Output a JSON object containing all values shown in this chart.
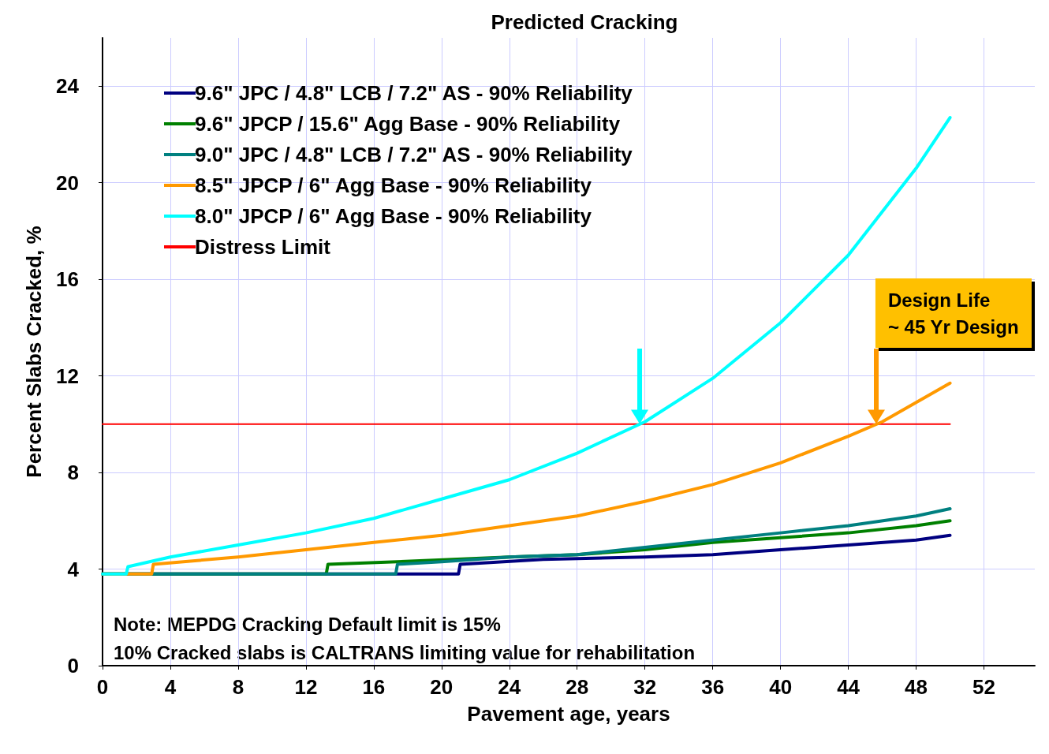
{
  "chart_data": {
    "type": "line",
    "title": "Predicted Cracking",
    "xlabel": "Pavement age, years",
    "ylabel": "Percent Slabs Cracked, %",
    "xlim": [
      0,
      55
    ],
    "xticks": [
      0,
      4,
      8,
      12,
      16,
      20,
      24,
      28,
      32,
      36,
      40,
      44,
      48,
      52
    ],
    "ylim": [
      0,
      26
    ],
    "yticks": [
      0,
      4,
      8,
      12,
      16,
      20,
      24
    ],
    "grid": true,
    "legend": "top left",
    "marker": "none",
    "line_style": "solid",
    "series": [
      {
        "name": "9.6\" JPC / 4.8\" LCB / 7.2\" AS - 90% Reliability",
        "color": "#000080",
        "x": [
          0,
          21,
          21.1,
          26,
          32,
          36,
          40,
          44,
          48,
          50
        ],
        "values": [
          3.8,
          3.8,
          4.2,
          4.4,
          4.5,
          4.6,
          4.8,
          5.0,
          5.2,
          5.4
        ]
      },
      {
        "name": "9.6\" JPCP / 15.6\" Agg Base - 90% Reliability",
        "color": "#008000",
        "x": [
          0,
          13.2,
          13.3,
          19,
          24,
          28,
          32,
          36,
          40,
          44,
          48,
          50
        ],
        "values": [
          3.8,
          3.8,
          4.2,
          4.35,
          4.5,
          4.6,
          4.8,
          5.1,
          5.3,
          5.5,
          5.8,
          6.0
        ]
      },
      {
        "name": "9.0\" JPC / 4.8\" LCB / 7.2\" AS - 90% Reliability",
        "color": "#008080",
        "x": [
          0,
          17.3,
          17.4,
          20,
          24,
          28,
          32,
          36,
          40,
          44,
          48,
          50
        ],
        "values": [
          3.8,
          3.8,
          4.2,
          4.3,
          4.5,
          4.6,
          4.9,
          5.2,
          5.5,
          5.8,
          6.2,
          6.5
        ]
      },
      {
        "name": "8.5\" JPCP / 6\" Agg Base - 90% Reliability",
        "color": "#ff9900",
        "x": [
          0,
          2.9,
          3.0,
          8,
          12,
          16,
          20,
          24,
          28,
          32,
          36,
          40,
          44,
          46,
          48,
          50
        ],
        "values": [
          3.8,
          3.8,
          4.2,
          4.5,
          4.8,
          5.1,
          5.4,
          5.8,
          6.2,
          6.8,
          7.5,
          8.4,
          9.5,
          10.1,
          10.9,
          11.7
        ]
      },
      {
        "name": "8.0\" JPCP / 6\" Agg Base - 90% Reliability",
        "color": "#00ffff",
        "x": [
          0,
          1.4,
          1.5,
          4,
          8,
          12,
          16,
          20,
          24,
          28,
          32,
          36,
          40,
          44,
          48,
          50
        ],
        "values": [
          3.8,
          3.8,
          4.1,
          4.5,
          5.0,
          5.5,
          6.1,
          6.9,
          7.7,
          8.8,
          10.1,
          11.9,
          14.2,
          17.0,
          20.6,
          22.7
        ]
      },
      {
        "name": "Distress Limit",
        "color": "#ff0000",
        "x": [
          0,
          50
        ],
        "values": [
          10,
          10
        ]
      }
    ],
    "annotations": [
      "Design Life\n~ 45 Yr Design",
      "Note: MEPDG Cracking Default limit is 15%\n10% Cracked slabs is CALTRANS limiting value for rehabilitation"
    ]
  }
}
